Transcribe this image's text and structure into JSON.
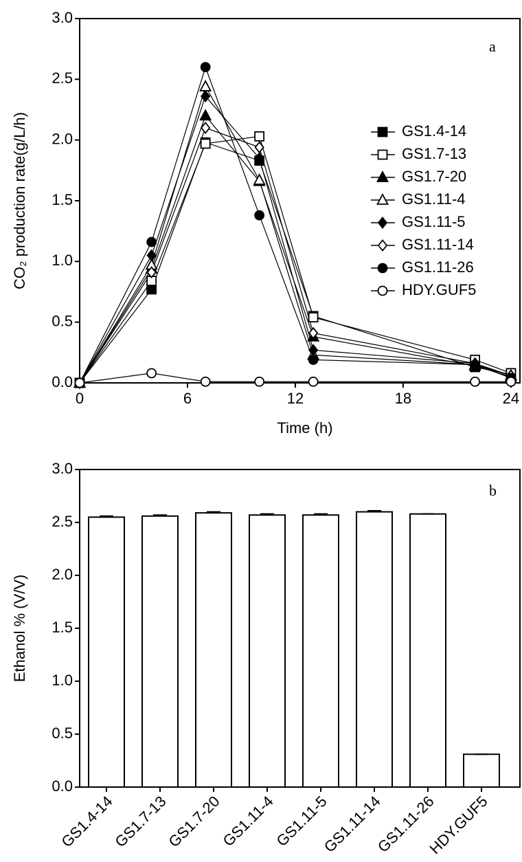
{
  "chart_data": [
    {
      "type": "line",
      "ylabel": "CO₂ production rate(g/L/h)",
      "xlabel": "Time (h)",
      "annotation": "a",
      "x": [
        0,
        4,
        7,
        10,
        13,
        22,
        24
      ],
      "xlim": [
        0,
        24.5
      ],
      "xticks": [
        0,
        6,
        12,
        18,
        24
      ],
      "ylim": [
        0,
        3
      ],
      "yticks": [
        {
          "value": 0,
          "label": "0.0"
        },
        {
          "value": 0.5,
          "label": "0.5"
        },
        {
          "value": 1,
          "label": "1.0"
        },
        {
          "value": 1.5,
          "label": "1.5"
        },
        {
          "value": 2,
          "label": "2.0"
        },
        {
          "value": 2.5,
          "label": "2.5"
        },
        {
          "value": 3,
          "label": "3.0"
        }
      ],
      "series": [
        {
          "name": "GS1.4-14",
          "color": "#000000",
          "marker": "square",
          "filled": true,
          "values": [
            0,
            0.77,
            1.98,
            1.83,
            0.55,
            0.13,
            0.07
          ]
        },
        {
          "name": "GS1.7-13",
          "color": "#000000",
          "marker": "square",
          "filled": false,
          "values": [
            0,
            0.84,
            1.97,
            2.03,
            0.54,
            0.19,
            0.08
          ]
        },
        {
          "name": "GS1.7-20",
          "color": "#000000",
          "marker": "triangle",
          "filled": true,
          "values": [
            0,
            0.94,
            2.2,
            1.66,
            0.38,
            0.14,
            0.05
          ]
        },
        {
          "name": "GS1.11-4",
          "color": "#000000",
          "marker": "triangle",
          "filled": false,
          "values": [
            0,
            0.97,
            2.44,
            1.67,
            0.23,
            0.15,
            0.06
          ]
        },
        {
          "name": "GS1.11-5",
          "color": "#000000",
          "marker": "diamond",
          "filled": true,
          "values": [
            0,
            1.05,
            2.36,
            1.85,
            0.27,
            0.16,
            0.06
          ]
        },
        {
          "name": "GS1.11-14",
          "color": "#000000",
          "marker": "diamond",
          "filled": false,
          "values": [
            0,
            0.91,
            2.1,
            1.94,
            0.41,
            0.16,
            0.06
          ]
        },
        {
          "name": "GS1.11-26",
          "color": "#000000",
          "marker": "circle",
          "filled": true,
          "values": [
            0,
            1.16,
            2.6,
            1.38,
            0.19,
            0.15,
            0.04
          ]
        },
        {
          "name": "HDY.GUF5",
          "color": "#000000",
          "marker": "circle",
          "filled": false,
          "values": [
            0,
            0.08,
            0.01,
            0.01,
            0.01,
            0.01,
            0.01
          ]
        }
      ]
    },
    {
      "type": "bar",
      "ylabel": "Ethanol % (V/V)",
      "annotation": "b",
      "categories": [
        "GS1.4-14",
        "GS1.7-13",
        "GS1.7-20",
        "GS1.11-4",
        "GS1.11-5",
        "GS1.11-14",
        "GS1.11-26",
        "HDY.GUF5"
      ],
      "values": [
        2.55,
        2.56,
        2.59,
        2.57,
        2.57,
        2.6,
        2.58,
        0.31
      ],
      "errors": [
        0.01,
        0.01,
        0.01,
        0.01,
        0.01,
        0.01,
        0,
        0
      ],
      "color": "#ffffff",
      "ylim": [
        0,
        3
      ],
      "yticks": [
        {
          "value": 0,
          "label": "0.0"
        },
        {
          "value": 0.5,
          "label": "0.5"
        },
        {
          "value": 1,
          "label": "1.0"
        },
        {
          "value": 1.5,
          "label": "1.5"
        },
        {
          "value": 2,
          "label": "2.0"
        },
        {
          "value": 2.5,
          "label": "2.5"
        },
        {
          "value": 3,
          "label": "3.0"
        }
      ]
    }
  ]
}
